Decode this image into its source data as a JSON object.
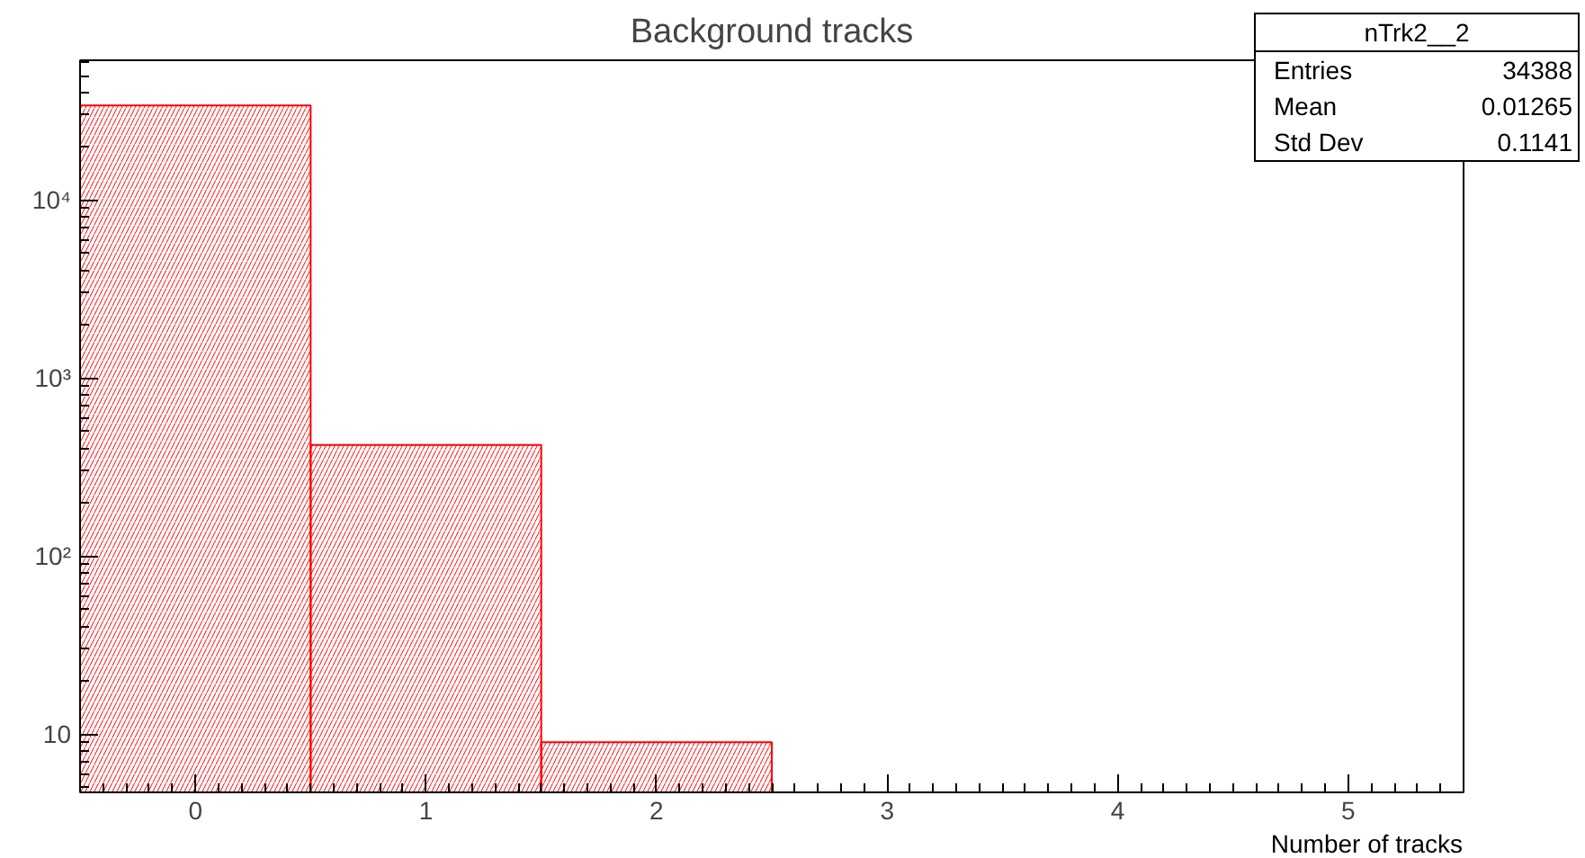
{
  "chart_data": {
    "type": "histogram",
    "title": "Background tracks",
    "xlabel": "Number of tracks",
    "bins": [
      -0.5,
      0.5,
      1.5,
      2.5
    ],
    "values": [
      34000,
      420,
      9
    ],
    "color": "#ff0000",
    "xlim": [
      -0.5,
      5.5
    ],
    "ylim": [
      4.7,
      61000
    ],
    "log": true,
    "grid": false,
    "xticks": [
      0,
      1,
      2,
      3,
      4,
      5
    ],
    "yticks": [
      {
        "value": 10,
        "label": "10"
      },
      {
        "value": 100,
        "label": "10²"
      },
      {
        "value": 1000,
        "label": "10³"
      },
      {
        "value": 10000,
        "label": "10⁴"
      }
    ],
    "annotations": [
      "nTrk2__2",
      "Entries",
      "34388",
      "Mean",
      "0.01265",
      "Std Dev",
      "0.1141"
    ]
  }
}
